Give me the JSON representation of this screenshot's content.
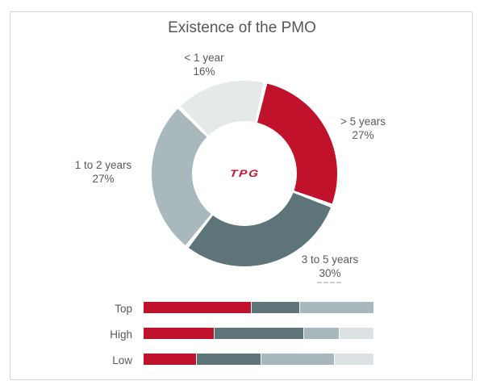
{
  "page": {
    "background": "#ffffff",
    "frame_border_color": "#d6d6d6"
  },
  "palette": {
    "red": "#c1122b",
    "dark_slate": "#5d7479",
    "medium_gray": "#a9b8bd",
    "light_gray_donut": "#e4e9ea",
    "light_gray_bar": "#dce2e4",
    "label_gray": "#595959",
    "title_gray": "#565656"
  },
  "chart_data": [
    {
      "type": "pie",
      "subtype": "donut",
      "title": "Existence of the PMO",
      "labels": [
        "> 5 years",
        "3 to 5 years",
        "1 to 2 years",
        "< 1 year"
      ],
      "values": [
        27,
        30,
        27,
        16
      ],
      "pct_labels": [
        "27%",
        "30%",
        "27%",
        "16%"
      ],
      "colors": [
        "#c1122b",
        "#5d7479",
        "#a9b8bd",
        "#e4e9ea"
      ],
      "start_angle_deg": 13,
      "direction": "clockwise",
      "center_text": "TPG",
      "center_text_color": "#c1122b",
      "separator_color": "#ffffff",
      "legend_position": "labels-around-slices"
    },
    {
      "type": "bar",
      "subtype": "stacked-horizontal",
      "categories": [
        "Top",
        "High",
        "Low"
      ],
      "series": [
        {
          "name": "> 5 years",
          "color": "#c1122b",
          "values": [
            47,
            31,
            23
          ]
        },
        {
          "name": "3 to 5 years",
          "color": "#5d7479",
          "values": [
            21,
            39,
            28
          ]
        },
        {
          "name": "1 to 2 years",
          "color": "#a9b8bd",
          "values": [
            32,
            15,
            32
          ]
        },
        {
          "name": "< 1 year",
          "color": "#dce2e4",
          "values": [
            0,
            15,
            17
          ]
        }
      ],
      "xlim": [
        0,
        100
      ],
      "grid": false,
      "value_labels_visible": false,
      "legend_position": "none"
    }
  ]
}
